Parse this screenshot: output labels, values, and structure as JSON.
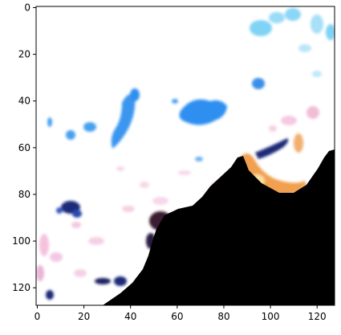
{
  "image_axes": {
    "x_ticks": [
      {
        "value": 0,
        "label": "0"
      },
      {
        "value": 20,
        "label": "20"
      },
      {
        "value": 40,
        "label": "40"
      },
      {
        "value": 60,
        "label": "60"
      },
      {
        "value": 80,
        "label": "80"
      },
      {
        "value": 100,
        "label": "100"
      },
      {
        "value": 120,
        "label": "120"
      }
    ],
    "y_ticks": [
      {
        "value": 0,
        "label": "0"
      },
      {
        "value": 20,
        "label": "20"
      },
      {
        "value": 40,
        "label": "40"
      },
      {
        "value": 60,
        "label": "60"
      },
      {
        "value": 80,
        "label": "80"
      },
      {
        "value": 100,
        "label": "100"
      },
      {
        "value": 120,
        "label": "120"
      }
    ],
    "x_range": [
      -0.5,
      127.5
    ],
    "y_range": [
      -0.5,
      127.5
    ],
    "y_inverted": true
  },
  "palette": {
    "background": "#ffffff",
    "water_blue": "#2f8ff0",
    "light_blue": "#7fd3f5",
    "dark_blue": "#1a2a78",
    "pink": "#f4b8d8",
    "land_black": "#000000",
    "orange": "#f0a050",
    "brown": "#6a3020"
  }
}
